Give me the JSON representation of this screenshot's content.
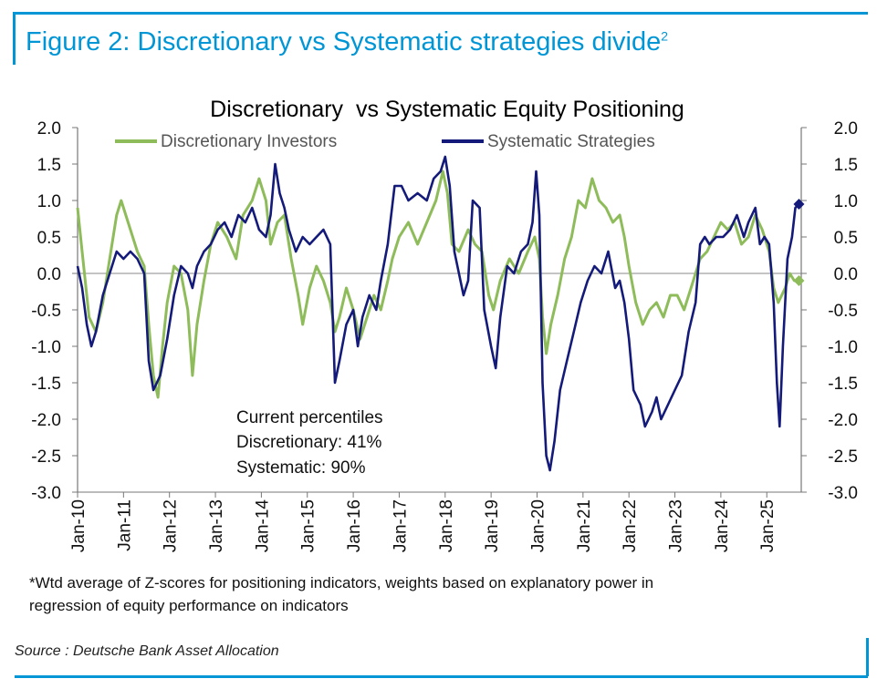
{
  "figure": {
    "title": "Figure 2: Discretionary vs Systematic strategies divide",
    "footnote_mark": "2",
    "source": "Source : Deutsche Bank Asset Allocation",
    "note_line1": "*Wtd average of Z-scores for positioning indicators, weights based on explanatory power in",
    "note_line2": "regression of equity performance on indicators"
  },
  "annotation": {
    "line1": "Current percentiles",
    "line2": "Discretionary: 41%",
    "line3": "Systematic: 90%"
  },
  "colors": {
    "accent": "#0096d6",
    "discretionary": "#8fbc5a",
    "systematic": "#141a7a"
  },
  "chart_data": {
    "type": "line",
    "title": "Discretionary  vs Systematic Equity Positioning",
    "ylim": [
      -3.0,
      2.0
    ],
    "yticks": [
      "2.0",
      "1.5",
      "1.0",
      "0.5",
      "0.0",
      "-0.5",
      "-1.0",
      "-1.5",
      "-2.0",
      "-2.5",
      "-3.0"
    ],
    "ytick_values": [
      2.0,
      1.5,
      1.0,
      0.5,
      0.0,
      -0.5,
      -1.0,
      -1.5,
      -2.0,
      -2.5,
      -3.0
    ],
    "xticks": [
      "Jan-10",
      "Jan-11",
      "Jan-12",
      "Jan-13",
      "Jan-14",
      "Jan-15",
      "Jan-16",
      "Jan-17",
      "Jan-18",
      "Jan-19",
      "Jan-20",
      "Jan-21",
      "Jan-22",
      "Jan-23",
      "Jan-24",
      "Jan-25"
    ],
    "xlim": [
      2010.0,
      2025.75
    ],
    "legend_position": "top",
    "grid": false,
    "series": [
      {
        "name": "Discretionary Investors",
        "color": "#8fbc5a",
        "points": [
          [
            2010.0,
            0.9
          ],
          [
            2010.1,
            0.3
          ],
          [
            2010.25,
            -0.6
          ],
          [
            2010.4,
            -0.8
          ],
          [
            2010.55,
            -0.4
          ],
          [
            2010.7,
            0.2
          ],
          [
            2010.85,
            0.8
          ],
          [
            2010.95,
            1.0
          ],
          [
            2011.15,
            0.6
          ],
          [
            2011.3,
            0.3
          ],
          [
            2011.45,
            0.1
          ],
          [
            2011.55,
            -0.7
          ],
          [
            2011.65,
            -1.4
          ],
          [
            2011.75,
            -1.7
          ],
          [
            2011.85,
            -1.0
          ],
          [
            2011.95,
            -0.4
          ],
          [
            2012.1,
            0.1
          ],
          [
            2012.25,
            0.0
          ],
          [
            2012.4,
            -0.5
          ],
          [
            2012.5,
            -1.4
          ],
          [
            2012.6,
            -0.7
          ],
          [
            2012.75,
            -0.1
          ],
          [
            2012.9,
            0.4
          ],
          [
            2013.05,
            0.7
          ],
          [
            2013.25,
            0.5
          ],
          [
            2013.45,
            0.2
          ],
          [
            2013.6,
            0.8
          ],
          [
            2013.8,
            1.0
          ],
          [
            2013.95,
            1.3
          ],
          [
            2014.1,
            1.0
          ],
          [
            2014.2,
            0.4
          ],
          [
            2014.35,
            0.7
          ],
          [
            2014.5,
            0.8
          ],
          [
            2014.65,
            0.2
          ],
          [
            2014.8,
            -0.3
          ],
          [
            2014.9,
            -0.7
          ],
          [
            2015.05,
            -0.2
          ],
          [
            2015.2,
            0.1
          ],
          [
            2015.35,
            -0.1
          ],
          [
            2015.5,
            -0.4
          ],
          [
            2015.6,
            -0.8
          ],
          [
            2015.7,
            -0.6
          ],
          [
            2015.85,
            -0.2
          ],
          [
            2016.0,
            -0.5
          ],
          [
            2016.15,
            -0.9
          ],
          [
            2016.3,
            -0.6
          ],
          [
            2016.45,
            -0.3
          ],
          [
            2016.6,
            -0.5
          ],
          [
            2016.75,
            -0.1
          ],
          [
            2016.85,
            0.2
          ],
          [
            2017.0,
            0.5
          ],
          [
            2017.2,
            0.7
          ],
          [
            2017.4,
            0.4
          ],
          [
            2017.6,
            0.7
          ],
          [
            2017.8,
            1.0
          ],
          [
            2017.95,
            1.4
          ],
          [
            2018.05,
            1.1
          ],
          [
            2018.15,
            0.4
          ],
          [
            2018.3,
            0.3
          ],
          [
            2018.5,
            0.6
          ],
          [
            2018.65,
            0.4
          ],
          [
            2018.8,
            0.3
          ],
          [
            2018.95,
            -0.3
          ],
          [
            2019.05,
            -0.5
          ],
          [
            2019.2,
            -0.1
          ],
          [
            2019.4,
            0.2
          ],
          [
            2019.6,
            0.0
          ],
          [
            2019.8,
            0.3
          ],
          [
            2019.95,
            0.5
          ],
          [
            2020.05,
            0.2
          ],
          [
            2020.12,
            -0.6
          ],
          [
            2020.2,
            -1.1
          ],
          [
            2020.3,
            -0.7
          ],
          [
            2020.45,
            -0.3
          ],
          [
            2020.6,
            0.2
          ],
          [
            2020.75,
            0.5
          ],
          [
            2020.9,
            1.0
          ],
          [
            2021.05,
            0.9
          ],
          [
            2021.2,
            1.3
          ],
          [
            2021.35,
            1.0
          ],
          [
            2021.5,
            0.9
          ],
          [
            2021.65,
            0.7
          ],
          [
            2021.8,
            0.8
          ],
          [
            2021.9,
            0.5
          ],
          [
            2022.0,
            0.1
          ],
          [
            2022.15,
            -0.4
          ],
          [
            2022.3,
            -0.7
          ],
          [
            2022.45,
            -0.5
          ],
          [
            2022.6,
            -0.4
          ],
          [
            2022.75,
            -0.6
          ],
          [
            2022.9,
            -0.3
          ],
          [
            2023.05,
            -0.3
          ],
          [
            2023.2,
            -0.5
          ],
          [
            2023.4,
            -0.1
          ],
          [
            2023.55,
            0.2
          ],
          [
            2023.7,
            0.3
          ],
          [
            2023.85,
            0.5
          ],
          [
            2024.0,
            0.7
          ],
          [
            2024.15,
            0.6
          ],
          [
            2024.3,
            0.7
          ],
          [
            2024.45,
            0.4
          ],
          [
            2024.6,
            0.5
          ],
          [
            2024.75,
            0.8
          ],
          [
            2024.9,
            0.6
          ],
          [
            2025.05,
            0.3
          ],
          [
            2025.15,
            -0.2
          ],
          [
            2025.25,
            -0.4
          ],
          [
            2025.4,
            -0.2
          ],
          [
            2025.5,
            0.0
          ],
          [
            2025.6,
            -0.1
          ],
          [
            2025.7,
            -0.1
          ]
        ]
      },
      {
        "name": "Systematic Strategies",
        "color": "#141a7a",
        "points": [
          [
            2010.0,
            0.1
          ],
          [
            2010.1,
            -0.2
          ],
          [
            2010.2,
            -0.7
          ],
          [
            2010.3,
            -1.0
          ],
          [
            2010.4,
            -0.8
          ],
          [
            2010.55,
            -0.3
          ],
          [
            2010.7,
            0.0
          ],
          [
            2010.85,
            0.3
          ],
          [
            2011.0,
            0.2
          ],
          [
            2011.15,
            0.3
          ],
          [
            2011.3,
            0.2
          ],
          [
            2011.45,
            0.0
          ],
          [
            2011.55,
            -1.2
          ],
          [
            2011.65,
            -1.6
          ],
          [
            2011.8,
            -1.4
          ],
          [
            2011.95,
            -0.9
          ],
          [
            2012.1,
            -0.3
          ],
          [
            2012.25,
            0.1
          ],
          [
            2012.4,
            0.0
          ],
          [
            2012.5,
            -0.2
          ],
          [
            2012.6,
            0.1
          ],
          [
            2012.75,
            0.3
          ],
          [
            2012.9,
            0.4
          ],
          [
            2013.05,
            0.6
          ],
          [
            2013.2,
            0.7
          ],
          [
            2013.35,
            0.5
          ],
          [
            2013.5,
            0.8
          ],
          [
            2013.65,
            0.7
          ],
          [
            2013.8,
            0.9
          ],
          [
            2013.95,
            0.6
          ],
          [
            2014.1,
            0.5
          ],
          [
            2014.2,
            0.8
          ],
          [
            2014.3,
            1.5
          ],
          [
            2014.4,
            1.1
          ],
          [
            2014.5,
            0.9
          ],
          [
            2014.6,
            0.6
          ],
          [
            2014.75,
            0.3
          ],
          [
            2014.9,
            0.5
          ],
          [
            2015.05,
            0.4
          ],
          [
            2015.2,
            0.5
          ],
          [
            2015.35,
            0.6
          ],
          [
            2015.5,
            0.4
          ],
          [
            2015.6,
            -1.5
          ],
          [
            2015.7,
            -1.2
          ],
          [
            2015.85,
            -0.7
          ],
          [
            2016.0,
            -0.5
          ],
          [
            2016.1,
            -1.0
          ],
          [
            2016.2,
            -0.6
          ],
          [
            2016.35,
            -0.3
          ],
          [
            2016.5,
            -0.5
          ],
          [
            2016.6,
            -0.1
          ],
          [
            2016.75,
            0.4
          ],
          [
            2016.9,
            1.2
          ],
          [
            2017.05,
            1.2
          ],
          [
            2017.2,
            1.0
          ],
          [
            2017.4,
            1.1
          ],
          [
            2017.6,
            1.0
          ],
          [
            2017.75,
            1.3
          ],
          [
            2017.9,
            1.4
          ],
          [
            2018.0,
            1.6
          ],
          [
            2018.1,
            1.2
          ],
          [
            2018.2,
            0.3
          ],
          [
            2018.3,
            0.0
          ],
          [
            2018.4,
            -0.3
          ],
          [
            2018.5,
            -0.1
          ],
          [
            2018.6,
            1.0
          ],
          [
            2018.75,
            0.9
          ],
          [
            2018.85,
            -0.5
          ],
          [
            2019.0,
            -1.0
          ],
          [
            2019.1,
            -1.3
          ],
          [
            2019.2,
            -0.6
          ],
          [
            2019.35,
            0.1
          ],
          [
            2019.5,
            0.0
          ],
          [
            2019.65,
            0.3
          ],
          [
            2019.8,
            0.4
          ],
          [
            2019.9,
            0.7
          ],
          [
            2019.98,
            1.4
          ],
          [
            2020.05,
            0.8
          ],
          [
            2020.12,
            -1.5
          ],
          [
            2020.2,
            -2.5
          ],
          [
            2020.28,
            -2.7
          ],
          [
            2020.38,
            -2.3
          ],
          [
            2020.5,
            -1.6
          ],
          [
            2020.65,
            -1.2
          ],
          [
            2020.8,
            -0.8
          ],
          [
            2020.95,
            -0.4
          ],
          [
            2021.1,
            -0.1
          ],
          [
            2021.25,
            0.1
          ],
          [
            2021.4,
            0.0
          ],
          [
            2021.55,
            0.3
          ],
          [
            2021.7,
            -0.2
          ],
          [
            2021.8,
            -0.1
          ],
          [
            2021.9,
            -0.4
          ],
          [
            2022.0,
            -0.9
          ],
          [
            2022.1,
            -1.6
          ],
          [
            2022.25,
            -1.8
          ],
          [
            2022.35,
            -2.1
          ],
          [
            2022.5,
            -1.9
          ],
          [
            2022.6,
            -1.7
          ],
          [
            2022.7,
            -2.0
          ],
          [
            2022.85,
            -1.8
          ],
          [
            2023.0,
            -1.6
          ],
          [
            2023.15,
            -1.4
          ],
          [
            2023.3,
            -0.8
          ],
          [
            2023.45,
            -0.4
          ],
          [
            2023.55,
            0.4
          ],
          [
            2023.65,
            0.5
          ],
          [
            2023.75,
            0.4
          ],
          [
            2023.9,
            0.5
          ],
          [
            2024.05,
            0.5
          ],
          [
            2024.2,
            0.6
          ],
          [
            2024.35,
            0.8
          ],
          [
            2024.5,
            0.5
          ],
          [
            2024.6,
            0.7
          ],
          [
            2024.75,
            0.9
          ],
          [
            2024.85,
            0.4
          ],
          [
            2024.95,
            0.5
          ],
          [
            2025.05,
            0.4
          ],
          [
            2025.15,
            -0.4
          ],
          [
            2025.22,
            -1.5
          ],
          [
            2025.28,
            -2.1
          ],
          [
            2025.35,
            -1.0
          ],
          [
            2025.45,
            0.2
          ],
          [
            2025.55,
            0.5
          ],
          [
            2025.62,
            0.9
          ],
          [
            2025.7,
            0.95
          ]
        ]
      }
    ]
  }
}
